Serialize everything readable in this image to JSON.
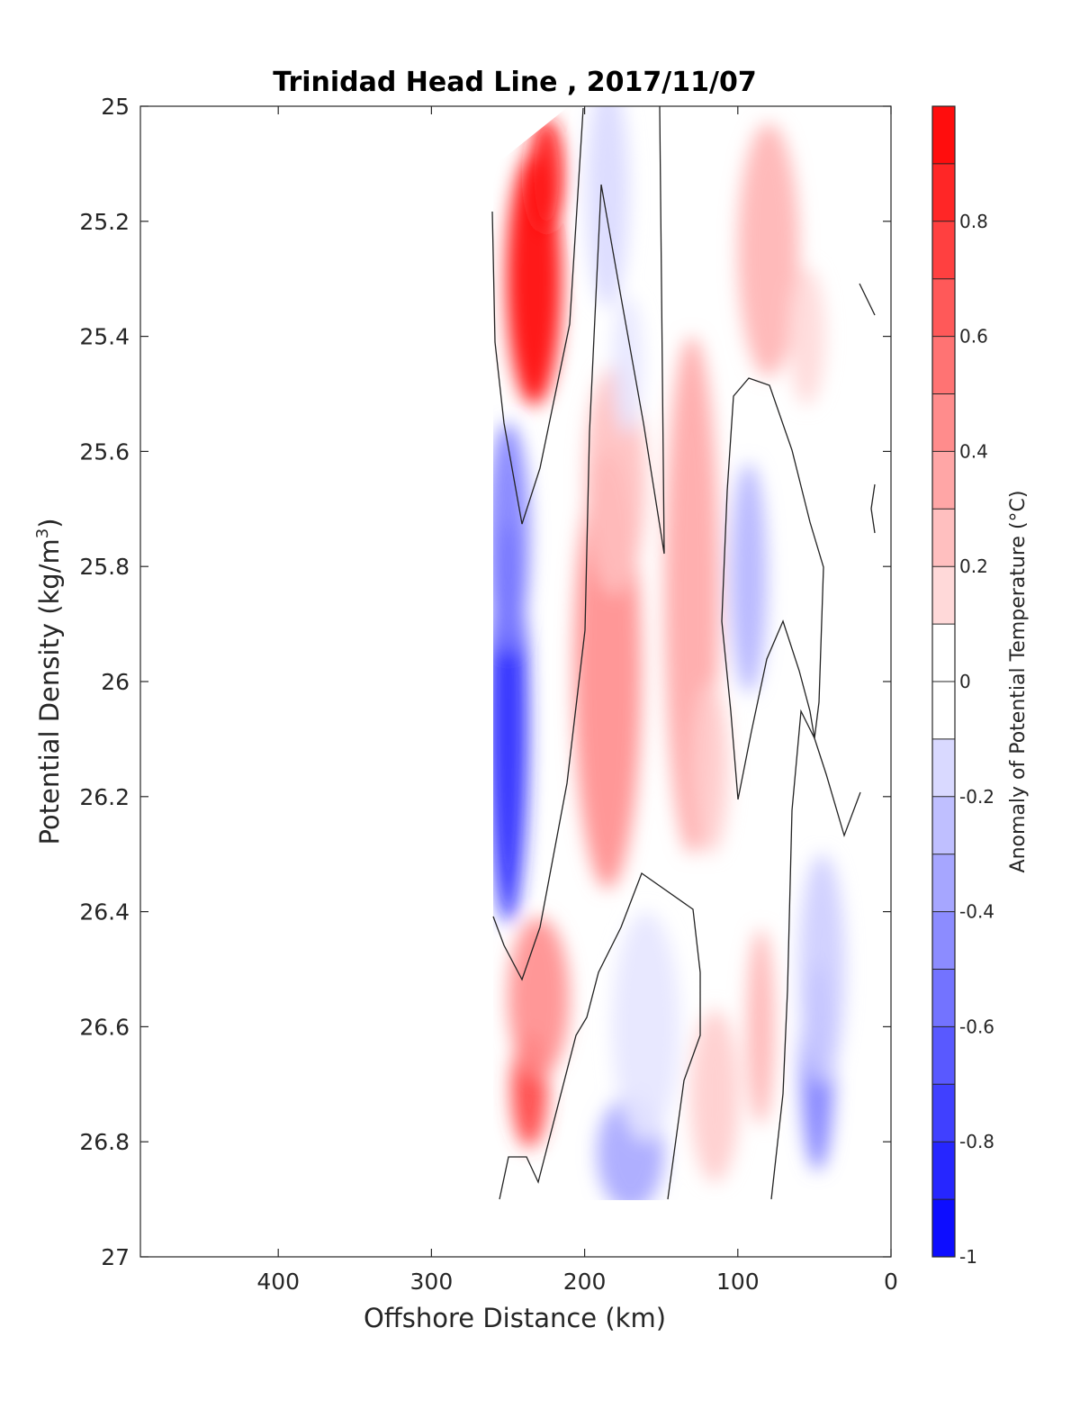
{
  "chart_data": {
    "type": "heatmap",
    "title": "Trinidad Head Line , 2017/11/07",
    "xlabel": "Offshore Distance (km)",
    "ylabel": "Potential Density (kg/m",
    "ylabel_sup": "3",
    "ylabel_close": ")",
    "xlim": [
      490,
      0
    ],
    "ylim": [
      25,
      27
    ],
    "y_reversed": true,
    "x_reversed": true,
    "xticks": [
      400,
      300,
      200,
      100,
      0
    ],
    "yticks": [
      25,
      25.2,
      25.4,
      25.6,
      25.8,
      26,
      26.2,
      26.4,
      26.6,
      26.8,
      27
    ],
    "ytick_labels": [
      "25",
      "25.2",
      "25.4",
      "25.6",
      "25.8",
      "26",
      "26.2",
      "26.4",
      "26.6",
      "26.8",
      "27"
    ],
    "colorbar": {
      "label": "Anomaly of Potential Temperature (°C)",
      "range": [
        -1,
        1
      ],
      "levels": 20,
      "ticks": [
        0.8,
        0.6,
        0.4,
        0.2,
        0,
        -0.2,
        -0.4,
        -0.6,
        -0.8,
        -1
      ],
      "tick_labels": [
        "0.8",
        "0.6",
        "0.4",
        "0.2",
        "0",
        "-0.2",
        "-0.4",
        "-0.6",
        "-0.8",
        "-1"
      ],
      "colormap": "blue-white-red"
    },
    "anomaly_features": [
      {
        "x": 233,
        "y": 25.3,
        "value": 1.0,
        "rx": 18,
        "ry": 0.22
      },
      {
        "x": 225,
        "y": 25.12,
        "value": 0.9,
        "rx": 12,
        "ry": 0.1
      },
      {
        "x": 250,
        "y": 26.07,
        "value": -0.85,
        "rx": 13,
        "ry": 0.35
      },
      {
        "x": 250,
        "y": 25.75,
        "value": -0.5,
        "rx": 14,
        "ry": 0.2
      },
      {
        "x": 236,
        "y": 26.71,
        "value": 0.75,
        "rx": 12,
        "ry": 0.1
      },
      {
        "x": 230,
        "y": 26.55,
        "value": 0.45,
        "rx": 20,
        "ry": 0.14
      },
      {
        "x": 185,
        "y": 25.98,
        "value": 0.45,
        "rx": 22,
        "ry": 0.38
      },
      {
        "x": 180,
        "y": 25.65,
        "value": 0.25,
        "rx": 20,
        "ry": 0.2
      },
      {
        "x": 185,
        "y": 25.15,
        "value": -0.15,
        "rx": 14,
        "ry": 0.2
      },
      {
        "x": 172,
        "y": 25.45,
        "value": -0.1,
        "rx": 10,
        "ry": 0.12
      },
      {
        "x": 130,
        "y": 25.85,
        "value": 0.35,
        "rx": 18,
        "ry": 0.45
      },
      {
        "x": 118,
        "y": 26.15,
        "value": 0.2,
        "rx": 12,
        "ry": 0.15
      },
      {
        "x": 80,
        "y": 25.25,
        "value": 0.3,
        "rx": 20,
        "ry": 0.22
      },
      {
        "x": 55,
        "y": 25.4,
        "value": 0.15,
        "rx": 12,
        "ry": 0.12
      },
      {
        "x": 93,
        "y": 25.82,
        "value": -0.3,
        "rx": 12,
        "ry": 0.2
      },
      {
        "x": 170,
        "y": 26.82,
        "value": -0.35,
        "rx": 22,
        "ry": 0.1
      },
      {
        "x": 160,
        "y": 26.6,
        "value": -0.1,
        "rx": 22,
        "ry": 0.2
      },
      {
        "x": 48,
        "y": 26.67,
        "value": -0.5,
        "rx": 11,
        "ry": 0.18
      },
      {
        "x": 45,
        "y": 26.5,
        "value": -0.2,
        "rx": 15,
        "ry": 0.2
      },
      {
        "x": 115,
        "y": 26.72,
        "value": 0.2,
        "rx": 16,
        "ry": 0.15
      },
      {
        "x": 85,
        "y": 26.6,
        "value": 0.3,
        "rx": 9,
        "ry": 0.17
      }
    ]
  }
}
